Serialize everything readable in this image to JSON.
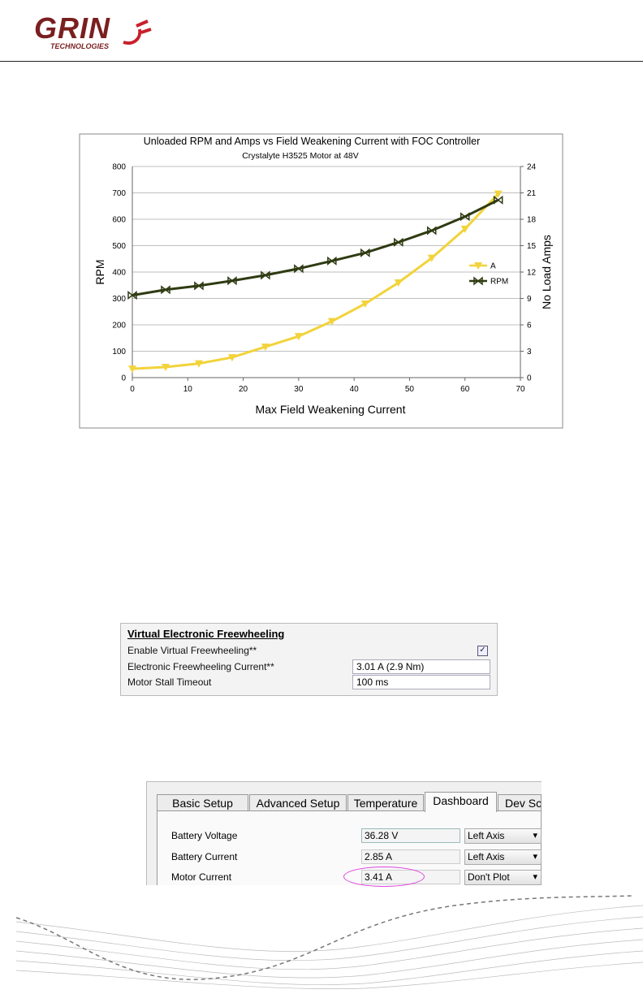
{
  "header": {
    "logo": "GRIN",
    "logo_sub": "TECHNOLOGIES"
  },
  "chart_data": {
    "type": "line",
    "title": "Unloaded RPM and Amps vs Field Weakening Current with FOC Controller",
    "subtitle": "Crystalyte H3525 Motor at 48V",
    "x_label": "Max Field Weakening Current",
    "y_label": "RPM",
    "y2_label": "No Load Amps",
    "x": [
      0,
      6,
      12,
      18,
      24,
      30,
      36,
      42,
      48,
      54,
      60,
      66
    ],
    "series": [
      {
        "name": "A",
        "color": "#f2d33a",
        "axis": "y2",
        "values": [
          1.0,
          1.2,
          1.6,
          2.3,
          3.5,
          4.7,
          6.4,
          8.4,
          10.8,
          13.6,
          16.9,
          20.9
        ]
      },
      {
        "name": "RPM",
        "color": "#2f3b12",
        "values": [
          312,
          333,
          348,
          367,
          388,
          413,
          442,
          473,
          513,
          557,
          610,
          673
        ]
      }
    ],
    "xlim": [
      0,
      70
    ],
    "xticks": [
      0,
      10,
      20,
      30,
      40,
      50,
      60,
      70
    ],
    "ylim": [
      0,
      800
    ],
    "yticks": [
      0,
      100,
      200,
      300,
      400,
      500,
      600,
      700,
      800
    ],
    "y2lim": [
      0,
      24
    ],
    "y2ticks": [
      0,
      3,
      6,
      9,
      12,
      15,
      18,
      21,
      24
    ],
    "grid": true,
    "legend": "right"
  },
  "freewheel_panel": {
    "title": "Virtual Electronic Freewheeling",
    "rows": [
      {
        "label": "Enable Virtual Freewheeling**"
      },
      {
        "label": "Electronic Freewheeling Current**",
        "value": "3.01 A  (2.9 Nm)"
      },
      {
        "label": "Motor Stall Timeout",
        "value": "100 ms"
      }
    ]
  },
  "dashboard_panel": {
    "tabs": [
      "Basic Setup",
      "Advanced Setup",
      "Temperature",
      "Dashboard",
      "Dev Sc"
    ],
    "rows": [
      {
        "label": "Battery Voltage",
        "value": "36.28 V",
        "axis": "Left Axis"
      },
      {
        "label": "Battery Current",
        "value": "2.85 A",
        "axis": "Left Axis"
      },
      {
        "label": "Motor Current",
        "value": "3.41 A",
        "axis": "Don't Plot"
      }
    ]
  }
}
